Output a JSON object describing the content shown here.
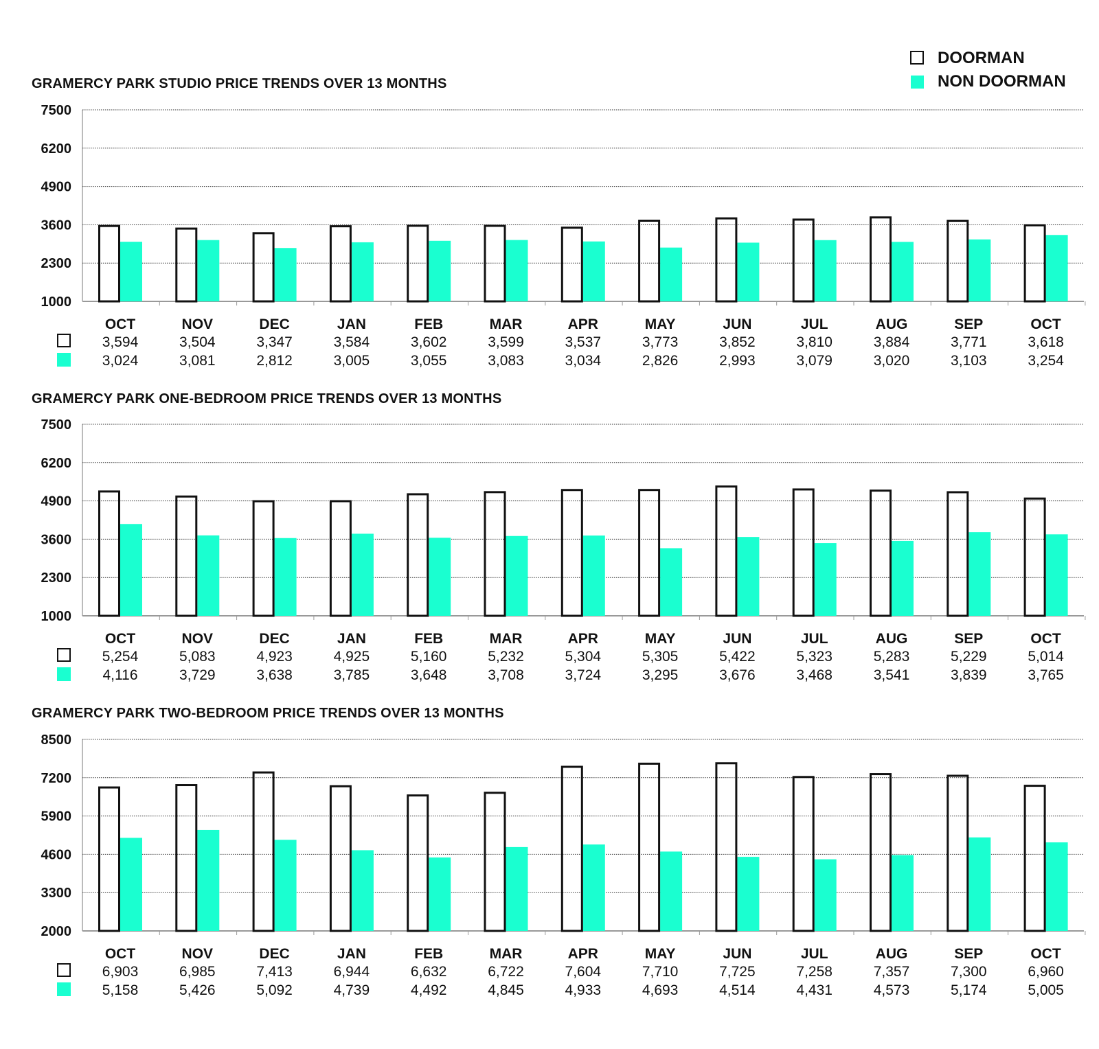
{
  "legend": {
    "doorman_label": "DOORMAN",
    "non_doorman_label": "NON DOORMAN",
    "doorman_color": "#ffffff",
    "doorman_stroke": "#111111",
    "non_doorman_color": "#1affd0"
  },
  "chart_data": [
    {
      "type": "bar",
      "title": "GRAMERCY PARK STUDIO PRICE TRENDS OVER 13 MONTHS",
      "categories": [
        "OCT",
        "NOV",
        "DEC",
        "JAN",
        "FEB",
        "MAR",
        "APR",
        "MAY",
        "JUN",
        "JUL",
        "AUG",
        "SEP",
        "OCT"
      ],
      "yticks": [
        1000,
        2300,
        3600,
        4900,
        6200,
        7500
      ],
      "ylim": [
        1000,
        7500
      ],
      "grid": true,
      "series": [
        {
          "name": "DOORMAN",
          "values": [
            3594,
            3504,
            3347,
            3584,
            3602,
            3599,
            3537,
            3773,
            3852,
            3810,
            3884,
            3771,
            3618
          ],
          "labels": [
            "3,594",
            "3,504",
            "3,347",
            "3,584",
            "3,602",
            "3,599",
            "3,537",
            "3,773",
            "3,852",
            "3,810",
            "3,884",
            "3,771",
            "3,618"
          ]
        },
        {
          "name": "NON DOORMAN",
          "values": [
            3024,
            3081,
            2812,
            3005,
            3055,
            3083,
            3034,
            2826,
            2993,
            3079,
            3020,
            3103,
            3254
          ],
          "labels": [
            "3,024",
            "3,081",
            "2,812",
            "3,005",
            "3,055",
            "3,083",
            "3,034",
            "2,826",
            "2,993",
            "3,079",
            "3,020",
            "3,103",
            "3,254"
          ]
        }
      ]
    },
    {
      "type": "bar",
      "title": "GRAMERCY PARK ONE-BEDROOM PRICE TRENDS OVER 13 MONTHS",
      "categories": [
        "OCT",
        "NOV",
        "DEC",
        "JAN",
        "FEB",
        "MAR",
        "APR",
        "MAY",
        "JUN",
        "JUL",
        "AUG",
        "SEP",
        "OCT"
      ],
      "yticks": [
        1000,
        2300,
        3600,
        4900,
        6200,
        7500
      ],
      "ylim": [
        1000,
        7500
      ],
      "grid": true,
      "series": [
        {
          "name": "DOORMAN",
          "values": [
            5254,
            5083,
            4923,
            4925,
            5160,
            5232,
            5304,
            5305,
            5422,
            5323,
            5283,
            5229,
            5014
          ],
          "labels": [
            "5,254",
            "5,083",
            "4,923",
            "4,925",
            "5,160",
            "5,232",
            "5,304",
            "5,305",
            "5,422",
            "5,323",
            "5,283",
            "5,229",
            "5,014"
          ]
        },
        {
          "name": "NON DOORMAN",
          "values": [
            4116,
            3729,
            3638,
            3785,
            3648,
            3708,
            3724,
            3295,
            3676,
            3468,
            3541,
            3839,
            3765
          ],
          "labels": [
            "4,116",
            "3,729",
            "3,638",
            "3,785",
            "3,648",
            "3,708",
            "3,724",
            "3,295",
            "3,676",
            "3,468",
            "3,541",
            "3,839",
            "3,765"
          ]
        }
      ]
    },
    {
      "type": "bar",
      "title": "GRAMERCY PARK TWO-BEDROOM PRICE TRENDS OVER 13 MONTHS",
      "categories": [
        "OCT",
        "NOV",
        "DEC",
        "JAN",
        "FEB",
        "MAR",
        "APR",
        "MAY",
        "JUN",
        "JUL",
        "AUG",
        "SEP",
        "OCT"
      ],
      "yticks": [
        2000,
        3300,
        4600,
        5900,
        7200,
        8500
      ],
      "ylim": [
        2000,
        8500
      ],
      "grid": true,
      "series": [
        {
          "name": "DOORMAN",
          "values": [
            6903,
            6985,
            7413,
            6944,
            6632,
            6722,
            7604,
            7710,
            7725,
            7258,
            7357,
            7300,
            6960
          ],
          "labels": [
            "6,903",
            "6,985",
            "7,413",
            "6,944",
            "6,632",
            "6,722",
            "7,604",
            "7,710",
            "7,725",
            "7,258",
            "7,357",
            "7,300",
            "6,960"
          ]
        },
        {
          "name": "NON DOORMAN",
          "values": [
            5158,
            5426,
            5092,
            4739,
            4492,
            4845,
            4933,
            4693,
            4514,
            4431,
            4573,
            5174,
            5005
          ],
          "labels": [
            "5,158",
            "5,426",
            "5,092",
            "4,739",
            "4,492",
            "4,845",
            "4,933",
            "4,693",
            "4,514",
            "4,431",
            "4,573",
            "5,174",
            "5,005"
          ]
        }
      ]
    }
  ]
}
